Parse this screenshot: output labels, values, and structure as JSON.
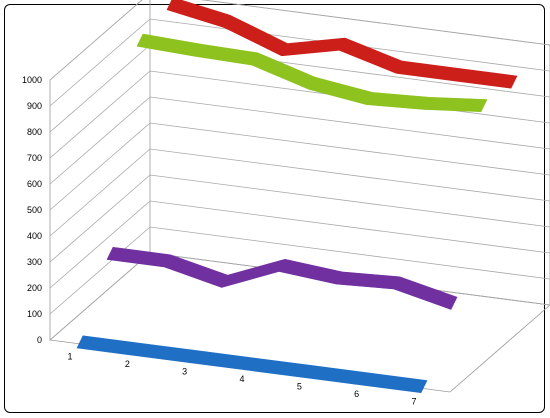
{
  "chart_data": {
    "type": "line",
    "title": "",
    "xlabel": "",
    "ylabel": "",
    "x": [
      1,
      2,
      3,
      4,
      5,
      6,
      7
    ],
    "y_ticks": [
      0,
      100,
      200,
      300,
      400,
      500,
      600,
      700,
      800,
      900,
      1000
    ],
    "ylim": [
      0,
      1000
    ],
    "three_d": true,
    "grid": true,
    "legend": "none",
    "series": [
      {
        "color": "#cc1f1a",
        "values": [
          1000,
          960,
          880,
          930,
          870,
          870,
          870
        ]
      },
      {
        "color": "#8dc21f",
        "values": [
          960,
          950,
          945,
          880,
          850,
          860,
          880
        ]
      },
      {
        "color": "#7030a0",
        "values": [
          240,
          240,
          190,
          280,
          260,
          270,
          220
        ]
      },
      {
        "color": "#1f6fc5",
        "values": [
          0,
          0,
          0,
          0,
          0,
          0,
          0
        ]
      }
    ]
  }
}
